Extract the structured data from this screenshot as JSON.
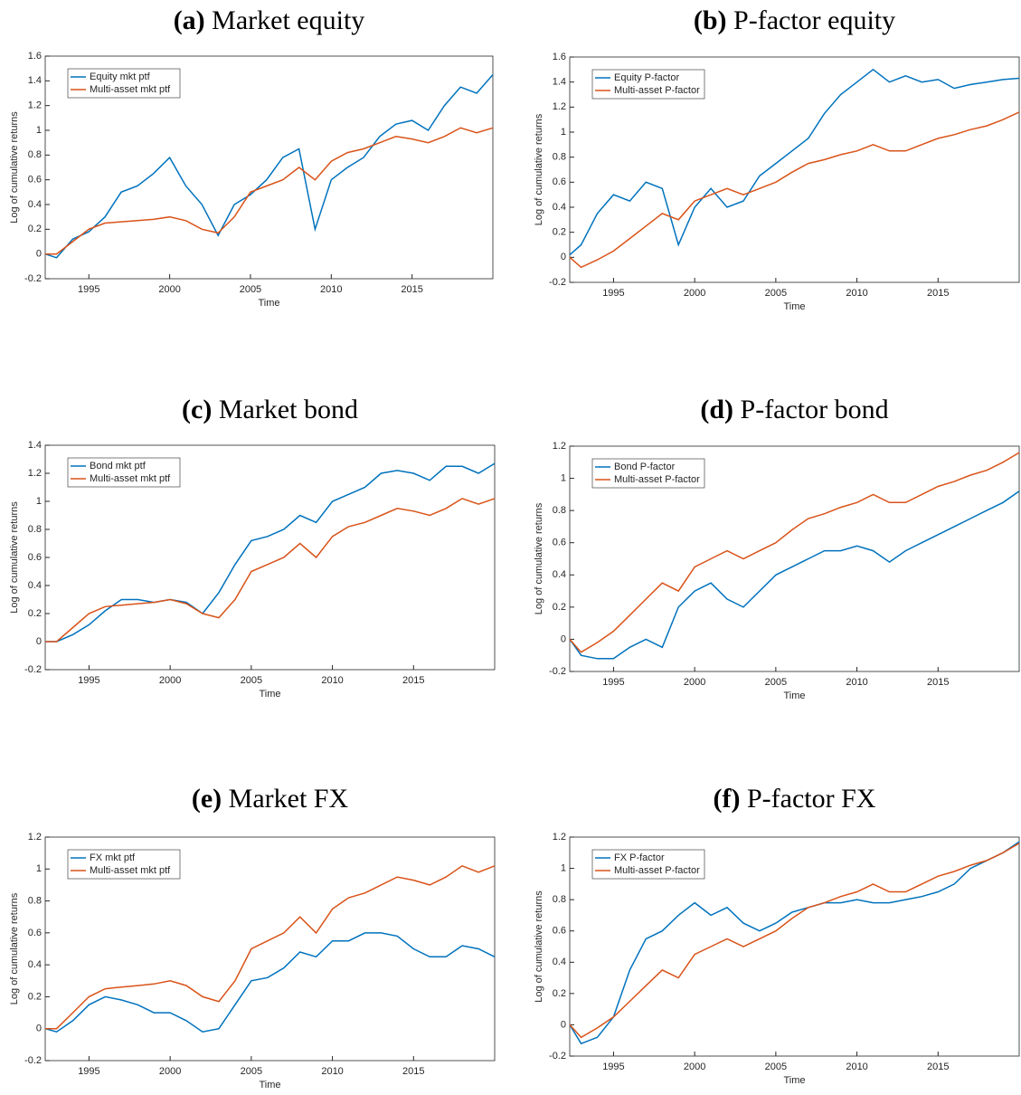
{
  "chart_data": [
    {
      "type": "line",
      "label": "(a)",
      "title": "Market equity",
      "x_label": "Time",
      "y_label": "Log of cumulative returns",
      "x": [
        1992.3,
        1993,
        1994,
        1995,
        1996,
        1997,
        1998,
        1999,
        2000,
        2001,
        2002,
        2003,
        2004,
        2005,
        2006,
        2007,
        2008,
        2009,
        2010,
        2011,
        2012,
        2013,
        2014,
        2015,
        2016,
        2017,
        2018,
        2019,
        2020
      ],
      "series": [
        {
          "name": "Equity mkt ptf",
          "color": "#0072bd",
          "values": [
            0,
            -0.03,
            0.12,
            0.18,
            0.3,
            0.5,
            0.55,
            0.65,
            0.78,
            0.55,
            0.4,
            0.15,
            0.4,
            0.48,
            0.6,
            0.78,
            0.85,
            0.2,
            0.6,
            0.7,
            0.78,
            0.95,
            1.05,
            1.08,
            1.0,
            1.2,
            1.35,
            1.3,
            1.45
          ]
        },
        {
          "name": "Multi-asset mkt ptf",
          "color": "#d95319",
          "values": [
            0,
            0,
            0.1,
            0.2,
            0.25,
            0.26,
            0.27,
            0.28,
            0.3,
            0.27,
            0.2,
            0.17,
            0.3,
            0.5,
            0.55,
            0.6,
            0.7,
            0.6,
            0.75,
            0.82,
            0.85,
            0.9,
            0.95,
            0.93,
            0.9,
            0.95,
            1.02,
            0.98,
            1.02
          ]
        }
      ],
      "xlim": [
        1992.3,
        2020
      ],
      "xticks": [
        1995,
        2000,
        2005,
        2010,
        2015
      ],
      "ylim": [
        -0.2,
        1.6
      ],
      "yticks": [
        -0.2,
        0,
        0.2,
        0.4,
        0.6,
        0.8,
        1,
        1.2,
        1.4,
        1.6
      ]
    },
    {
      "type": "line",
      "label": "(b)",
      "title": "P-factor equity",
      "x_label": "Time",
      "y_label": "Log of cumulative returns",
      "x": [
        1992.3,
        1993,
        1994,
        1995,
        1996,
        1997,
        1998,
        1999,
        2000,
        2001,
        2002,
        2003,
        2004,
        2005,
        2006,
        2007,
        2008,
        2009,
        2010,
        2011,
        2012,
        2013,
        2014,
        2015,
        2016,
        2017,
        2018,
        2019,
        2020
      ],
      "series": [
        {
          "name": "Equity P-factor",
          "color": "#0072bd",
          "values": [
            0.02,
            0.1,
            0.35,
            0.5,
            0.45,
            0.6,
            0.55,
            0.1,
            0.4,
            0.55,
            0.4,
            0.45,
            0.65,
            0.75,
            0.85,
            0.95,
            1.15,
            1.3,
            1.4,
            1.5,
            1.4,
            1.45,
            1.4,
            1.42,
            1.35,
            1.38,
            1.4,
            1.42,
            1.43
          ]
        },
        {
          "name": "Multi-asset P-factor",
          "color": "#d95319",
          "values": [
            0,
            -0.08,
            -0.02,
            0.05,
            0.15,
            0.25,
            0.35,
            0.3,
            0.45,
            0.5,
            0.55,
            0.5,
            0.55,
            0.6,
            0.68,
            0.75,
            0.78,
            0.82,
            0.85,
            0.9,
            0.85,
            0.85,
            0.9,
            0.95,
            0.98,
            1.02,
            1.05,
            1.1,
            1.16
          ]
        }
      ],
      "xlim": [
        1992.3,
        2020
      ],
      "xticks": [
        1995,
        2000,
        2005,
        2010,
        2015
      ],
      "ylim": [
        -0.2,
        1.6
      ],
      "yticks": [
        -0.2,
        0,
        0.2,
        0.4,
        0.6,
        0.8,
        1,
        1.2,
        1.4,
        1.6
      ]
    },
    {
      "type": "line",
      "label": "(c)",
      "title": "Market bond",
      "x_label": "Time",
      "y_label": "Log of cumulative returns",
      "x": [
        1992.3,
        1993,
        1994,
        1995,
        1996,
        1997,
        1998,
        1999,
        2000,
        2001,
        2002,
        2003,
        2004,
        2005,
        2006,
        2007,
        2008,
        2009,
        2010,
        2011,
        2012,
        2013,
        2014,
        2015,
        2016,
        2017,
        2018,
        2019,
        2020
      ],
      "series": [
        {
          "name": "Bond mkt ptf",
          "color": "#0072bd",
          "values": [
            0,
            0,
            0.05,
            0.12,
            0.22,
            0.3,
            0.3,
            0.28,
            0.3,
            0.28,
            0.2,
            0.35,
            0.55,
            0.72,
            0.75,
            0.8,
            0.9,
            0.85,
            1.0,
            1.05,
            1.1,
            1.2,
            1.22,
            1.2,
            1.15,
            1.25,
            1.25,
            1.2,
            1.27
          ]
        },
        {
          "name": "Multi-asset mkt ptf",
          "color": "#d95319",
          "values": [
            0,
            0,
            0.1,
            0.2,
            0.25,
            0.26,
            0.27,
            0.28,
            0.3,
            0.27,
            0.2,
            0.17,
            0.3,
            0.5,
            0.55,
            0.6,
            0.7,
            0.6,
            0.75,
            0.82,
            0.85,
            0.9,
            0.95,
            0.93,
            0.9,
            0.95,
            1.02,
            0.98,
            1.02
          ]
        }
      ],
      "xlim": [
        1992.3,
        2020
      ],
      "xticks": [
        1995,
        2000,
        2005,
        2010,
        2015
      ],
      "ylim": [
        -0.2,
        1.4
      ],
      "yticks": [
        -0.2,
        0,
        0.2,
        0.4,
        0.6,
        0.8,
        1,
        1.2,
        1.4
      ]
    },
    {
      "type": "line",
      "label": "(d)",
      "title": "P-factor bond",
      "x_label": "Time",
      "y_label": "Log of cumulative returns",
      "x": [
        1992.3,
        1993,
        1994,
        1995,
        1996,
        1997,
        1998,
        1999,
        2000,
        2001,
        2002,
        2003,
        2004,
        2005,
        2006,
        2007,
        2008,
        2009,
        2010,
        2011,
        2012,
        2013,
        2014,
        2015,
        2016,
        2017,
        2018,
        2019,
        2020
      ],
      "series": [
        {
          "name": "Bond P-factor",
          "color": "#0072bd",
          "values": [
            0,
            -0.1,
            -0.12,
            -0.12,
            -0.05,
            0,
            -0.05,
            0.2,
            0.3,
            0.35,
            0.25,
            0.2,
            0.3,
            0.4,
            0.45,
            0.5,
            0.55,
            0.55,
            0.58,
            0.55,
            0.48,
            0.55,
            0.6,
            0.65,
            0.7,
            0.75,
            0.8,
            0.85,
            0.92
          ]
        },
        {
          "name": "Multi-asset P-factor",
          "color": "#d95319",
          "values": [
            0,
            -0.08,
            -0.02,
            0.05,
            0.15,
            0.25,
            0.35,
            0.3,
            0.45,
            0.5,
            0.55,
            0.5,
            0.55,
            0.6,
            0.68,
            0.75,
            0.78,
            0.82,
            0.85,
            0.9,
            0.85,
            0.85,
            0.9,
            0.95,
            0.98,
            1.02,
            1.05,
            1.1,
            1.16
          ]
        }
      ],
      "xlim": [
        1992.3,
        2020
      ],
      "xticks": [
        1995,
        2000,
        2005,
        2010,
        2015
      ],
      "ylim": [
        -0.2,
        1.2
      ],
      "yticks": [
        -0.2,
        0,
        0.2,
        0.4,
        0.6,
        0.8,
        1,
        1.2
      ]
    },
    {
      "type": "line",
      "label": "(e)",
      "title": "Market FX",
      "x_label": "Time",
      "y_label": "Log of cumulative returns",
      "x": [
        1992.3,
        1993,
        1994,
        1995,
        1996,
        1997,
        1998,
        1999,
        2000,
        2001,
        2002,
        2003,
        2004,
        2005,
        2006,
        2007,
        2008,
        2009,
        2010,
        2011,
        2012,
        2013,
        2014,
        2015,
        2016,
        2017,
        2018,
        2019,
        2020
      ],
      "series": [
        {
          "name": "FX mkt ptf",
          "color": "#0072bd",
          "values": [
            0,
            -0.02,
            0.05,
            0.15,
            0.2,
            0.18,
            0.15,
            0.1,
            0.1,
            0.05,
            -0.02,
            0,
            0.15,
            0.3,
            0.32,
            0.38,
            0.48,
            0.45,
            0.55,
            0.55,
            0.6,
            0.6,
            0.58,
            0.5,
            0.45,
            0.45,
            0.52,
            0.5,
            0.45
          ]
        },
        {
          "name": "Multi-asset mkt ptf",
          "color": "#d95319",
          "values": [
            0,
            0,
            0.1,
            0.2,
            0.25,
            0.26,
            0.27,
            0.28,
            0.3,
            0.27,
            0.2,
            0.17,
            0.3,
            0.5,
            0.55,
            0.6,
            0.7,
            0.6,
            0.75,
            0.82,
            0.85,
            0.9,
            0.95,
            0.93,
            0.9,
            0.95,
            1.02,
            0.98,
            1.02
          ]
        }
      ],
      "xlim": [
        1992.3,
        2020
      ],
      "xticks": [
        1995,
        2000,
        2005,
        2010,
        2015
      ],
      "ylim": [
        -0.2,
        1.2
      ],
      "yticks": [
        -0.2,
        0,
        0.2,
        0.4,
        0.6,
        0.8,
        1,
        1.2
      ]
    },
    {
      "type": "line",
      "label": "(f)",
      "title": "P-factor FX",
      "x_label": "Time",
      "y_label": "Log of cumulative returns",
      "x": [
        1992.3,
        1993,
        1994,
        1995,
        1996,
        1997,
        1998,
        1999,
        2000,
        2001,
        2002,
        2003,
        2004,
        2005,
        2006,
        2007,
        2008,
        2009,
        2010,
        2011,
        2012,
        2013,
        2014,
        2015,
        2016,
        2017,
        2018,
        2019,
        2020
      ],
      "series": [
        {
          "name": "FX P-factor",
          "color": "#0072bd",
          "values": [
            0,
            -0.12,
            -0.08,
            0.05,
            0.35,
            0.55,
            0.6,
            0.7,
            0.78,
            0.7,
            0.75,
            0.65,
            0.6,
            0.65,
            0.72,
            0.75,
            0.78,
            0.78,
            0.8,
            0.78,
            0.78,
            0.8,
            0.82,
            0.85,
            0.9,
            1.0,
            1.05,
            1.1,
            1.17
          ]
        },
        {
          "name": "Multi-asset P-factor",
          "color": "#d95319",
          "values": [
            0,
            -0.08,
            -0.02,
            0.05,
            0.15,
            0.25,
            0.35,
            0.3,
            0.45,
            0.5,
            0.55,
            0.5,
            0.55,
            0.6,
            0.68,
            0.75,
            0.78,
            0.82,
            0.85,
            0.9,
            0.85,
            0.85,
            0.9,
            0.95,
            0.98,
            1.02,
            1.05,
            1.1,
            1.16
          ]
        }
      ],
      "xlim": [
        1992.3,
        2020
      ],
      "xticks": [
        1995,
        2000,
        2005,
        2010,
        2015
      ],
      "ylim": [
        -0.2,
        1.2
      ],
      "yticks": [
        -0.2,
        0,
        0.2,
        0.4,
        0.6,
        0.8,
        1,
        1.2
      ]
    }
  ]
}
